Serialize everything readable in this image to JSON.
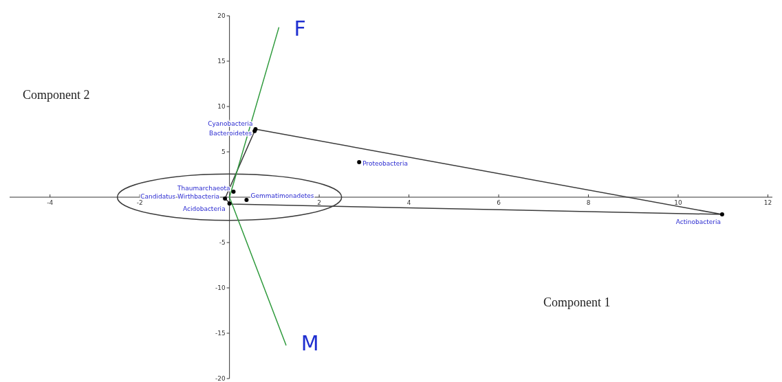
{
  "chart_data": {
    "type": "scatter",
    "xlabel": "Component 1",
    "ylabel": "Component 2",
    "xlim": [
      -4.9,
      12.1
    ],
    "ylim": [
      -20,
      20
    ],
    "xticks": [
      -4,
      -2,
      2,
      4,
      6,
      8,
      10,
      12
    ],
    "yticks": [
      -20,
      -15,
      -10,
      -5,
      5,
      10,
      15,
      20
    ],
    "grid": false,
    "legend": false,
    "series": [
      {
        "type": "line",
        "color": "#3a3a3a",
        "marker": "none",
        "x": [
          0.58,
          10.98
        ],
        "values": [
          7.5,
          -1.9
        ]
      },
      {
        "type": "line",
        "color": "#3a3a3a",
        "marker": "none",
        "x": [
          -0.1,
          0.03,
          10.98
        ],
        "values": [
          -0.15,
          -0.76,
          -1.9
        ]
      },
      {
        "type": "line",
        "color": "#3a3a3a",
        "marker": "none",
        "x": [
          -0.1,
          0.56,
          0.58
        ],
        "values": [
          -0.15,
          7.3,
          7.5
        ]
      },
      {
        "type": "line",
        "name": "F",
        "color": "#2e9a3c",
        "marker": "none",
        "x": [
          0,
          1.1
        ],
        "values": [
          0,
          18.7
        ]
      },
      {
        "type": "line",
        "name": "M",
        "color": "#2e9a3c",
        "marker": "none",
        "x": [
          0,
          1.26
        ],
        "values": [
          0,
          -16.3
        ]
      },
      {
        "color": "#000000",
        "marker": "circle",
        "x": [
          0.58,
          0.56,
          2.89,
          10.98,
          0.09,
          -0.1,
          0.38,
          0
        ],
        "values": [
          7.5,
          7.3,
          3.86,
          -1.9,
          0.6,
          -0.15,
          -0.3,
          -0.7
        ]
      }
    ],
    "annotations": [
      {
        "text": "Cyanobacteria",
        "x": 0.58,
        "y": 7.5
      },
      {
        "text": "Bacteroidetes",
        "x": 0.56,
        "y": 7.3
      },
      {
        "text": "Proteobacteria",
        "x": 2.89,
        "y": 3.86
      },
      {
        "text": "Actinobacteria",
        "x": 10.98,
        "y": -1.9
      },
      {
        "text": "Thaumarchaeota",
        "x": 0.09,
        "y": 0.6
      },
      {
        "text": "Candidatus Wirthbacteria",
        "x": -0.1,
        "y": -0.15
      },
      {
        "text": "Gemmatimonadetes",
        "x": 0.38,
        "y": -0.3
      },
      {
        "text": "Acidobacteria",
        "x": 0,
        "y": -0.7
      }
    ]
  }
}
